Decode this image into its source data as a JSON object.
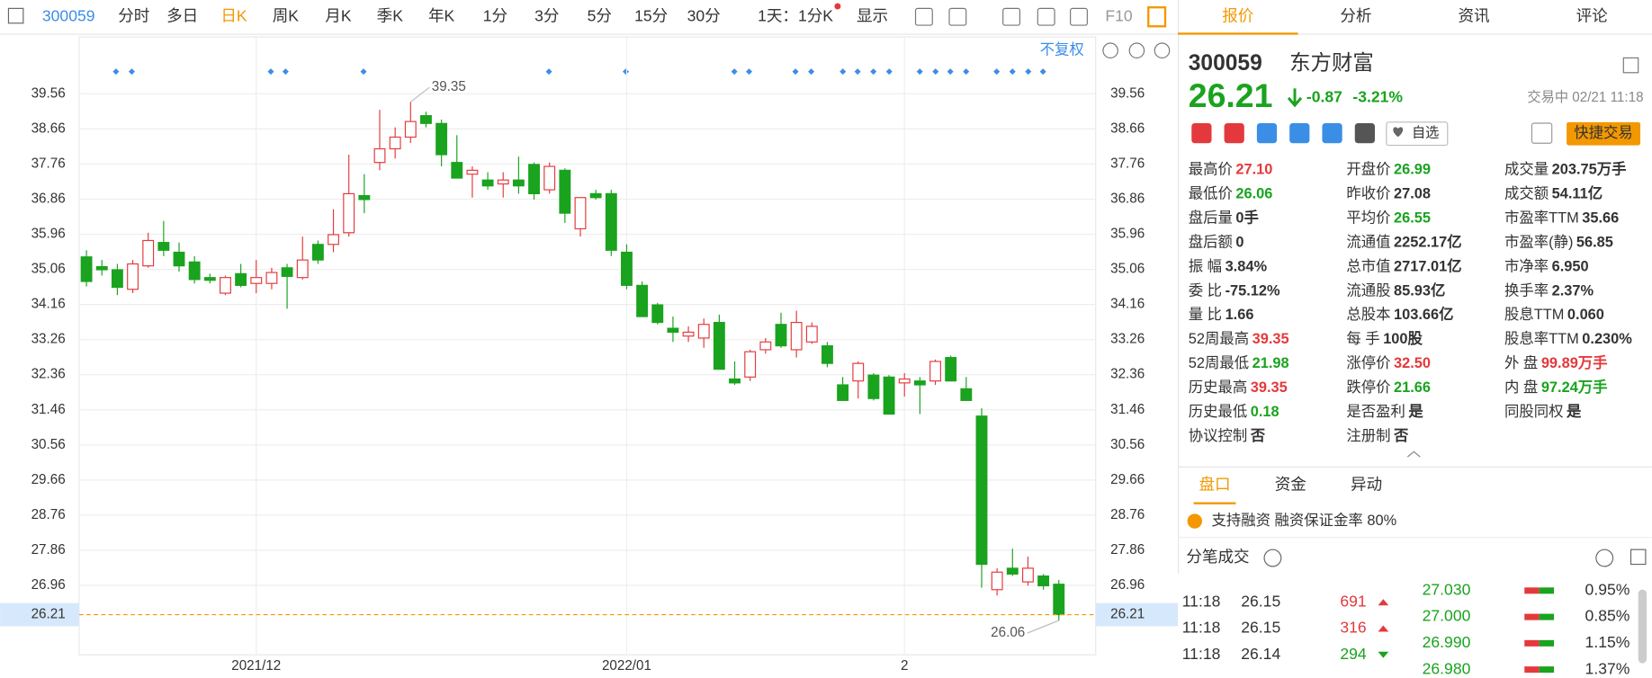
{
  "toolbar": {
    "code": "300059",
    "periods": [
      "分时",
      "多日",
      "日K",
      "周K",
      "月K",
      "季K",
      "年K",
      "1分",
      "3分",
      "5分",
      "15分",
      "30分"
    ],
    "active_index": 2,
    "span": "1天：1分K",
    "display": "显示",
    "f10": "F10"
  },
  "adjust": "不复权",
  "chart_data": {
    "type": "candlestick",
    "categories": [
      null,
      null,
      null,
      null,
      null,
      null,
      null,
      null,
      null,
      null,
      null,
      "2021/12",
      null,
      null,
      null,
      null,
      null,
      null,
      null,
      null,
      null,
      null,
      null,
      null,
      null,
      null,
      null,
      null,
      null,
      null,
      null,
      null,
      null,
      null,
      null,
      "2022/01",
      null,
      null,
      null,
      null,
      null,
      null,
      null,
      null,
      null,
      null,
      null,
      null,
      null,
      null,
      null,
      null,
      null,
      "2",
      null,
      null,
      null,
      null,
      null,
      null,
      null,
      null,
      null,
      null
    ],
    "open": [
      35.38,
      35.13,
      35.05,
      34.55,
      35.15,
      35.75,
      35.5,
      35.25,
      34.85,
      34.45,
      34.95,
      34.7,
      34.7,
      35.1,
      34.85,
      35.7,
      35.7,
      36.0,
      36.95,
      37.8,
      38.15,
      38.45,
      39.0,
      38.8,
      37.8,
      37.5,
      37.35,
      37.25,
      37.35,
      37.75,
      37.1,
      37.6,
      36.1,
      37.0,
      37.0,
      35.5,
      34.65,
      34.15,
      33.55,
      33.35,
      33.3,
      33.7,
      32.25,
      32.3,
      33.0,
      33.65,
      33.0,
      33.2,
      33.1,
      32.1,
      32.2,
      32.35,
      32.3,
      32.15,
      32.2,
      32.2,
      32.8,
      32.0,
      31.3,
      26.85,
      27.4,
      27.05,
      27.2,
      26.99
    ],
    "high": [
      35.55,
      35.3,
      35.2,
      35.3,
      36.0,
      36.3,
      35.75,
      35.4,
      34.95,
      34.9,
      35.2,
      35.3,
      35.1,
      35.2,
      35.9,
      35.8,
      36.6,
      38.0,
      37.5,
      39.15,
      38.7,
      39.35,
      39.1,
      38.9,
      38.5,
      37.7,
      37.55,
      37.55,
      37.95,
      37.8,
      37.8,
      37.65,
      36.9,
      37.1,
      37.1,
      35.7,
      34.75,
      34.2,
      33.85,
      33.6,
      33.8,
      33.9,
      32.7,
      33.0,
      33.3,
      33.95,
      34.0,
      33.7,
      33.2,
      32.3,
      32.7,
      32.4,
      32.35,
      32.4,
      32.3,
      32.75,
      32.85,
      32.3,
      31.5,
      27.4,
      27.9,
      27.7,
      27.25,
      27.1
    ],
    "low": [
      34.62,
      34.9,
      34.4,
      34.45,
      35.1,
      35.4,
      35.0,
      34.7,
      34.7,
      34.4,
      34.6,
      34.45,
      34.55,
      34.05,
      34.8,
      35.2,
      35.5,
      35.9,
      36.5,
      37.6,
      37.9,
      38.3,
      38.7,
      37.7,
      37.4,
      36.9,
      37.1,
      36.9,
      37.0,
      36.85,
      37.0,
      36.25,
      35.9,
      36.85,
      35.4,
      34.55,
      33.85,
      33.65,
      33.2,
      33.2,
      33.05,
      32.5,
      32.1,
      32.2,
      32.9,
      33.05,
      32.8,
      33.15,
      32.55,
      31.7,
      31.75,
      31.7,
      31.35,
      31.8,
      31.35,
      32.1,
      32.2,
      31.7,
      26.9,
      26.7,
      27.2,
      26.95,
      26.85,
      26.06
    ],
    "close": [
      34.75,
      35.05,
      34.6,
      35.2,
      35.8,
      35.55,
      35.15,
      34.8,
      34.78,
      34.85,
      34.65,
      34.85,
      34.98,
      34.88,
      35.3,
      35.3,
      35.95,
      37.0,
      36.85,
      38.15,
      38.45,
      38.85,
      38.8,
      38.0,
      37.4,
      37.6,
      37.2,
      37.35,
      37.2,
      37.0,
      37.7,
      36.5,
      36.9,
      36.9,
      35.55,
      34.65,
      33.85,
      33.7,
      33.45,
      33.45,
      33.65,
      32.5,
      32.15,
      32.95,
      33.2,
      33.1,
      33.7,
      33.6,
      32.65,
      31.7,
      32.65,
      31.75,
      31.35,
      32.25,
      32.1,
      32.7,
      32.2,
      31.7,
      27.5,
      27.3,
      27.25,
      27.4,
      26.95,
      26.21
    ],
    "up_color": "#e4393c",
    "down_color": "#1aa31f",
    "ylim": [
      25.18,
      41.02
    ],
    "yticks": [
      39.56,
      38.66,
      37.76,
      36.86,
      35.96,
      35.06,
      34.16,
      33.26,
      32.36,
      31.46,
      30.56,
      29.66,
      28.76,
      27.86,
      26.96
    ],
    "grid": true,
    "max_label": 39.35,
    "min_label": 26.06,
    "last_price": 26.21,
    "last_color": "#f39800"
  },
  "tabs": [
    "报价",
    "分析",
    "资讯",
    "评论"
  ],
  "active_tab": 0,
  "quote": {
    "code": "300059",
    "name": "东方财富",
    "price": "26.21",
    "change": "-0.87",
    "change_pct": "-3.21%",
    "status": "交易中 02/21 11:18",
    "watch": "自选",
    "trade": "快捷交易",
    "color": "#1aa31f"
  },
  "stats": [
    [
      {
        "label": "最高价",
        "value": "27.10",
        "color": "#e4393c"
      },
      {
        "label": "最低价",
        "value": "26.06",
        "color": "#1aa31f"
      },
      {
        "label": "盘后量",
        "value": "0手"
      },
      {
        "label": "盘后额",
        "value": "0"
      },
      {
        "label": "振 幅",
        "value": "3.84%"
      },
      {
        "label": "委 比",
        "value": "-75.12%"
      },
      {
        "label": "量 比",
        "value": "1.66"
      },
      {
        "label": "52周最高",
        "value": "39.35",
        "color": "#e4393c"
      },
      {
        "label": "52周最低",
        "value": "21.98",
        "color": "#1aa31f"
      },
      {
        "label": "历史最高",
        "value": "39.35",
        "color": "#e4393c"
      },
      {
        "label": "历史最低",
        "value": "0.18",
        "color": "#1aa31f"
      },
      {
        "label": "协议控制",
        "value": "否"
      }
    ],
    [
      {
        "label": "开盘价",
        "value": "26.99",
        "color": "#1aa31f"
      },
      {
        "label": "昨收价",
        "value": "27.08"
      },
      {
        "label": "平均价",
        "value": "26.55",
        "color": "#1aa31f"
      },
      {
        "label": "流通值",
        "value": "2252.17亿"
      },
      {
        "label": "总市值",
        "value": "2717.01亿"
      },
      {
        "label": "流通股",
        "value": "85.93亿"
      },
      {
        "label": "总股本",
        "value": "103.66亿"
      },
      {
        "label": "每 手",
        "value": "100股"
      },
      {
        "label": "涨停价",
        "value": "32.50",
        "color": "#e4393c"
      },
      {
        "label": "跌停价",
        "value": "21.66",
        "color": "#1aa31f"
      },
      {
        "label": "是否盈利",
        "value": "是"
      },
      {
        "label": "注册制",
        "value": "否"
      }
    ],
    [
      {
        "label": "成交量",
        "value": "203.75万手"
      },
      {
        "label": "成交额",
        "value": "54.11亿"
      },
      {
        "label": "市盈率TTM",
        "value": "35.66"
      },
      {
        "label": "市盈率(静)",
        "value": "56.85"
      },
      {
        "label": "市净率",
        "value": "6.950"
      },
      {
        "label": "换手率",
        "value": "2.37%"
      },
      {
        "label": "股息TTM",
        "value": "0.060"
      },
      {
        "label": "股息率TTM",
        "value": "0.230%"
      },
      {
        "label": "外 盘",
        "value": "99.89万手",
        "color": "#e4393c"
      },
      {
        "label": "内 盘",
        "value": "97.24万手",
        "color": "#1aa31f"
      },
      {
        "label": "同股同权",
        "value": "是"
      }
    ]
  ],
  "sub_tabs": [
    "盘口",
    "资金",
    "异动"
  ],
  "active_sub_tab": 0,
  "margin_note": "支持融资 融资保证金率 80%",
  "trades_title": "分笔成交",
  "trades": [
    {
      "time": "11:18",
      "price": "26.15",
      "volume": "691",
      "direction": "up"
    },
    {
      "time": "11:18",
      "price": "26.15",
      "volume": "316",
      "direction": "up"
    },
    {
      "time": "11:18",
      "price": "26.14",
      "volume": "294",
      "direction": "down"
    }
  ],
  "book": [
    {
      "price": "27.030",
      "pct": "0.95%"
    },
    {
      "price": "27.000",
      "pct": "0.85%"
    },
    {
      "price": "26.990",
      "pct": "1.15%"
    },
    {
      "price": "26.980",
      "pct": "1.37%"
    }
  ]
}
